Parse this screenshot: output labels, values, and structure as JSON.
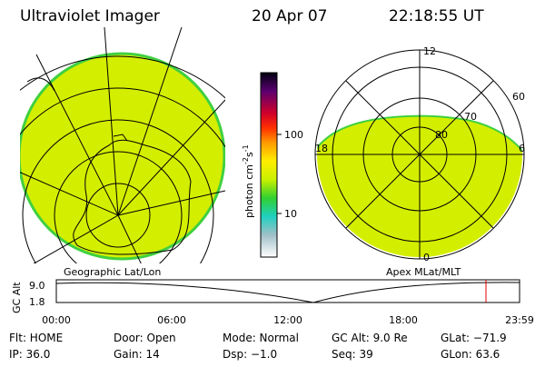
{
  "header": {
    "title": "Ultraviolet Imager",
    "date": "20 Apr 07",
    "time": "22:18:55 UT"
  },
  "colorbar": {
    "label": [
      "photon cm",
      "-2",
      "s",
      "-1"
    ],
    "ticks": [
      "100",
      "10"
    ]
  },
  "geographic": {
    "caption": "Geographic Lat/Lon"
  },
  "polar": {
    "caption": "Apex MLat/MLT",
    "mlt_labels": [
      "12",
      "18",
      "6",
      "0"
    ],
    "lat_labels": [
      "60",
      "70",
      "80"
    ]
  },
  "altitude": {
    "label": "GC Alt",
    "ticks": [
      "9.0",
      "1.8"
    ],
    "times": [
      "00:00",
      "06:00",
      "12:00",
      "18:00",
      "23:59"
    ]
  },
  "status": {
    "rows": [
      [
        "Flt: HOME",
        "Door: Open",
        "Mode: Normal",
        "GC Alt: 9.0 Re",
        "GLat: −71.9"
      ],
      [
        "IP: 36.0",
        "Gain: 14",
        "Dsp: −1.0",
        "Seq: 39",
        "GLon:  63.6"
      ]
    ]
  }
}
